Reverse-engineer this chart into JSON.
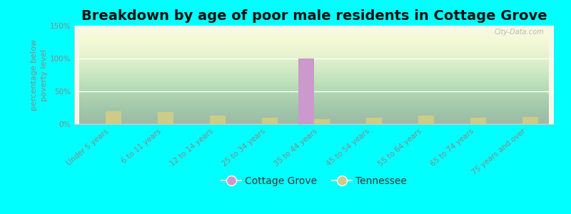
{
  "title": "Breakdown by age of poor male residents in Cottage Grove",
  "ylabel": "percentage below\npoverty level",
  "categories": [
    "Under 5 years",
    "6 to 11 years",
    "12 to 14 years",
    "25 to 34 years",
    "35 to 44 years",
    "45 to 54 years",
    "55 to 64 years",
    "65 to 74 years",
    "75 years and over"
  ],
  "cottage_grove": [
    0,
    0,
    0,
    0,
    100,
    0,
    0,
    0,
    0
  ],
  "tennessee": [
    20,
    18,
    13,
    10,
    8,
    10,
    13,
    10,
    11
  ],
  "cottage_grove_color": "#cc99cc",
  "tennessee_color": "#cccc88",
  "background_color": "#00ffff",
  "ylim": [
    0,
    150
  ],
  "yticks": [
    0,
    50,
    100,
    150
  ],
  "ytick_labels": [
    "0%",
    "50%",
    "100%",
    "150%"
  ],
  "bar_width": 0.3,
  "figsize": [
    8.0,
    3.0
  ],
  "dpi": 100,
  "title_fontsize": 14,
  "axis_label_fontsize": 8,
  "tick_fontsize": 7.5,
  "legend_fontsize": 10,
  "watermark": "City-Data.com"
}
